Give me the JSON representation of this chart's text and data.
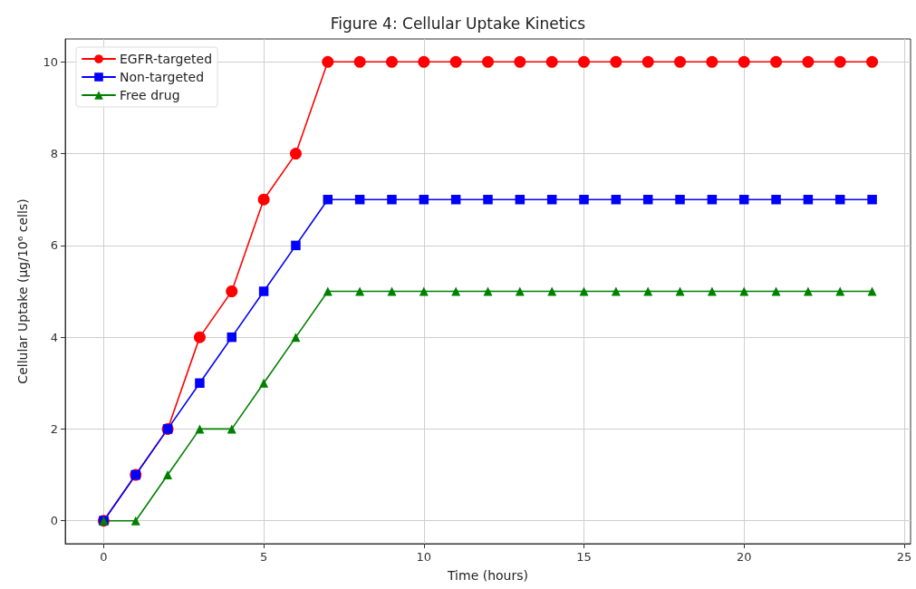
{
  "chart_data": {
    "type": "line",
    "title": "Figure 4: Cellular Uptake Kinetics",
    "xlabel": "Time (hours)",
    "ylabel": "Cellular Uptake (μg/10⁶ cells)",
    "x": [
      0,
      1,
      2,
      3,
      4,
      5,
      6,
      7,
      8,
      9,
      10,
      11,
      12,
      13,
      14,
      15,
      16,
      17,
      18,
      19,
      20,
      21,
      22,
      23,
      24
    ],
    "series": [
      {
        "name": "EGFR-targeted",
        "color": "#ff0000",
        "marker": "circle",
        "values": [
          0,
          1,
          2,
          4,
          5,
          7,
          8,
          10,
          10,
          10,
          10,
          10,
          10,
          10,
          10,
          10,
          10,
          10,
          10,
          10,
          10,
          10,
          10,
          10,
          10
        ]
      },
      {
        "name": "Non-targeted",
        "color": "#0000ff",
        "marker": "square",
        "values": [
          0,
          1,
          2,
          3,
          4,
          5,
          6,
          7,
          7,
          7,
          7,
          7,
          7,
          7,
          7,
          7,
          7,
          7,
          7,
          7,
          7,
          7,
          7,
          7,
          7
        ]
      },
      {
        "name": "Free drug",
        "color": "#008000",
        "marker": "triangle",
        "values": [
          0,
          0,
          1,
          2,
          2,
          3,
          4,
          5,
          5,
          5,
          5,
          5,
          5,
          5,
          5,
          5,
          5,
          5,
          5,
          5,
          5,
          5,
          5,
          5,
          5
        ]
      }
    ],
    "xlim": [
      -1.2,
      25.2
    ],
    "xticks": [
      0,
      5,
      10,
      15,
      20,
      25
    ],
    "ylim": [
      -0.5,
      10.5
    ],
    "yticks": [
      0,
      2,
      4,
      6,
      8,
      10
    ],
    "grid": true,
    "legend": "top left",
    "line_style": "solid"
  }
}
